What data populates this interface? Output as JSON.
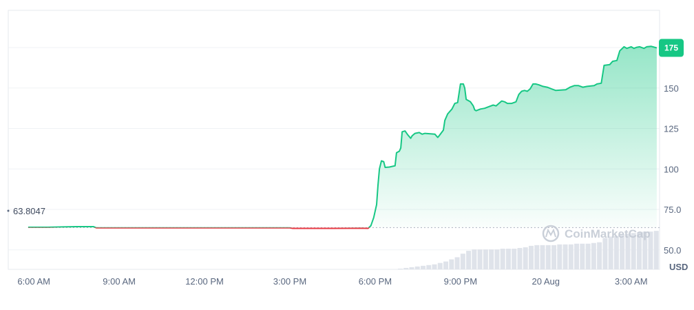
{
  "watermark": "CoinMarketCap",
  "chart_data": {
    "type": "line",
    "currency": "USD",
    "reference_value": 63.8047,
    "reference_label": "63.8047",
    "last_value_label": "175",
    "ylim": [
      38,
      198
    ],
    "yticks": [
      {
        "value": 50,
        "label": "50.0"
      },
      {
        "value": 75,
        "label": "75.0"
      },
      {
        "value": 100,
        "label": "100"
      },
      {
        "value": 125,
        "label": "125"
      },
      {
        "value": 150,
        "label": "150"
      },
      {
        "value": 175,
        "label": "175"
      }
    ],
    "xlim": [
      -0.9,
      22.0
    ],
    "xticks": [
      {
        "value": 0,
        "label": "6:00 AM"
      },
      {
        "value": 3,
        "label": "9:00 AM"
      },
      {
        "value": 6,
        "label": "12:00 PM"
      },
      {
        "value": 9,
        "label": "3:00 PM"
      },
      {
        "value": 12,
        "label": "6:00 PM"
      },
      {
        "value": 15,
        "label": "9:00 PM"
      },
      {
        "value": 18,
        "label": "20 Aug"
      },
      {
        "value": 21,
        "label": "3:00 AM"
      }
    ],
    "colors": {
      "up": "#16c784",
      "down": "#ea3943",
      "reference": "#9aa3b2",
      "volume": "#dfe3ea"
    },
    "series": [
      {
        "points": [
          [
            -0.2,
            64.0
          ],
          [
            0.5,
            64.0
          ],
          [
            1.0,
            64.2
          ],
          [
            1.5,
            64.4
          ],
          [
            2.1,
            64.4
          ],
          [
            2.2,
            63.6
          ],
          [
            4.0,
            63.6
          ],
          [
            6.0,
            63.6
          ],
          [
            8.0,
            63.6
          ],
          [
            9.0,
            63.6
          ],
          [
            9.1,
            63.3
          ],
          [
            10.5,
            63.3
          ],
          [
            11.5,
            63.4
          ],
          [
            11.75,
            63.3
          ],
          [
            11.85,
            65
          ],
          [
            11.95,
            70
          ],
          [
            12.05,
            78
          ],
          [
            12.1,
            90
          ],
          [
            12.15,
            100
          ],
          [
            12.22,
            105
          ],
          [
            12.3,
            104.5
          ],
          [
            12.35,
            101
          ],
          [
            12.5,
            101.2
          ],
          [
            12.7,
            102
          ],
          [
            12.75,
            110
          ],
          [
            12.85,
            111
          ],
          [
            12.9,
            113
          ],
          [
            12.95,
            123
          ],
          [
            13.05,
            123.5
          ],
          [
            13.15,
            121
          ],
          [
            13.25,
            119
          ],
          [
            13.3,
            120.5
          ],
          [
            13.4,
            122
          ],
          [
            13.55,
            122.5
          ],
          [
            13.65,
            121.5
          ],
          [
            13.75,
            122
          ],
          [
            14.1,
            121.5
          ],
          [
            14.2,
            119.5
          ],
          [
            14.25,
            120.5
          ],
          [
            14.4,
            124
          ],
          [
            14.45,
            130
          ],
          [
            14.55,
            134
          ],
          [
            14.7,
            137
          ],
          [
            14.8,
            140.5
          ],
          [
            14.9,
            141
          ],
          [
            15.0,
            152.5
          ],
          [
            15.1,
            152.5
          ],
          [
            15.15,
            150
          ],
          [
            15.2,
            143
          ],
          [
            15.35,
            141.5
          ],
          [
            15.45,
            139
          ],
          [
            15.5,
            136.5
          ],
          [
            15.55,
            136
          ],
          [
            15.7,
            137
          ],
          [
            15.85,
            137.5
          ],
          [
            16.0,
            138.5
          ],
          [
            16.15,
            139.5
          ],
          [
            16.25,
            139
          ],
          [
            16.35,
            140.5
          ],
          [
            16.45,
            142
          ],
          [
            16.55,
            141.5
          ],
          [
            16.65,
            140.5
          ],
          [
            16.8,
            140.5
          ],
          [
            16.95,
            141.5
          ],
          [
            17.05,
            146
          ],
          [
            17.15,
            148
          ],
          [
            17.25,
            148.5
          ],
          [
            17.35,
            148
          ],
          [
            17.45,
            149.5
          ],
          [
            17.55,
            152.5
          ],
          [
            17.65,
            152.5
          ],
          [
            17.75,
            152
          ],
          [
            17.9,
            151
          ],
          [
            18.05,
            150.5
          ],
          [
            18.2,
            149.5
          ],
          [
            18.35,
            148.5
          ],
          [
            18.7,
            149
          ],
          [
            18.85,
            150.5
          ],
          [
            19.0,
            151.5
          ],
          [
            19.15,
            151.5
          ],
          [
            19.3,
            150.5
          ],
          [
            19.45,
            151
          ],
          [
            19.7,
            151.5
          ],
          [
            19.8,
            152.5
          ],
          [
            19.95,
            153
          ],
          [
            20.05,
            164
          ],
          [
            20.25,
            164.5
          ],
          [
            20.35,
            166.5
          ],
          [
            20.5,
            167
          ],
          [
            20.6,
            173
          ],
          [
            20.75,
            175.5
          ],
          [
            20.85,
            174.5
          ],
          [
            21.0,
            175.5
          ],
          [
            21.1,
            174.5
          ],
          [
            21.2,
            175.2
          ],
          [
            21.3,
            175.5
          ],
          [
            21.45,
            174.5
          ],
          [
            21.55,
            175.5
          ],
          [
            21.7,
            175.8
          ],
          [
            21.9,
            174.8
          ]
        ]
      }
    ],
    "volume": [
      [
        12.8,
        1
      ],
      [
        13.0,
        2
      ],
      [
        13.2,
        3
      ],
      [
        13.4,
        4
      ],
      [
        13.6,
        5
      ],
      [
        13.8,
        6
      ],
      [
        14.0,
        7
      ],
      [
        14.2,
        9
      ],
      [
        14.4,
        11
      ],
      [
        14.6,
        14
      ],
      [
        14.8,
        17
      ],
      [
        15.0,
        22
      ],
      [
        15.2,
        26
      ],
      [
        15.4,
        28
      ],
      [
        15.6,
        28
      ],
      [
        15.8,
        28
      ],
      [
        16.0,
        28
      ],
      [
        16.2,
        28
      ],
      [
        16.4,
        29
      ],
      [
        16.6,
        29
      ],
      [
        16.8,
        29
      ],
      [
        17.0,
        30
      ],
      [
        17.2,
        31
      ],
      [
        17.4,
        33
      ],
      [
        17.6,
        34
      ],
      [
        17.8,
        34
      ],
      [
        18.0,
        34
      ],
      [
        18.2,
        34
      ],
      [
        18.4,
        35
      ],
      [
        18.6,
        35
      ],
      [
        18.8,
        35
      ],
      [
        19.0,
        36
      ],
      [
        19.2,
        36
      ],
      [
        19.4,
        36
      ],
      [
        19.6,
        37
      ],
      [
        19.8,
        38
      ],
      [
        20.0,
        44
      ],
      [
        20.2,
        46
      ],
      [
        20.4,
        47
      ],
      [
        20.6,
        49
      ],
      [
        20.8,
        50
      ],
      [
        21.0,
        51
      ],
      [
        21.2,
        52
      ],
      [
        21.4,
        53
      ],
      [
        21.6,
        53
      ],
      [
        21.8,
        54
      ]
    ]
  }
}
